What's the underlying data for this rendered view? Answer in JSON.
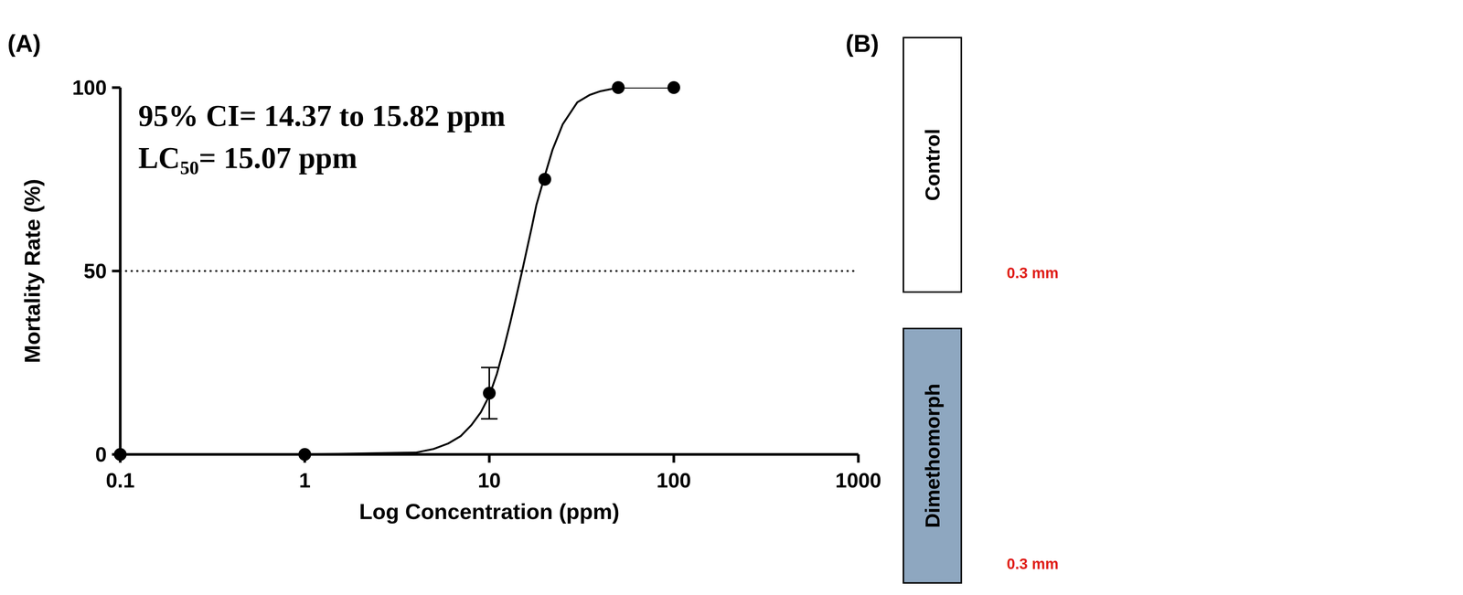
{
  "chart_data": {
    "type": "scatter",
    "label": "(A)",
    "x_label": "Log Concentration (ppm)",
    "y_label": "Mortality Rate (%)",
    "annotations": [
      "95% CI= 14.37 to 15.82 ppm",
      "LC50= 15.07 ppm"
    ],
    "log": "x",
    "xlim": [
      0.1,
      1000
    ],
    "xticks": [
      0.1,
      1,
      10,
      100,
      1000
    ],
    "ylim": [
      0,
      100
    ],
    "yticks": [
      0,
      50,
      100
    ],
    "reference_y": 50,
    "grid": false,
    "series": [
      {
        "type": "scatter",
        "color": "#000000",
        "marker": "circle",
        "x": [
          0.1,
          1,
          10,
          20,
          50,
          100
        ],
        "values": [
          0,
          0,
          16.7,
          75,
          100,
          100
        ],
        "errors": [
          0,
          0,
          7,
          0,
          0,
          0
        ]
      },
      {
        "type": "line",
        "color": "#000000",
        "line_style": "solid",
        "x": [
          0.1,
          1,
          4,
          5,
          6,
          7,
          8,
          9,
          10,
          11,
          12,
          13,
          14,
          15.07,
          16,
          17,
          18,
          20,
          22,
          25,
          30,
          35,
          40,
          50,
          100
        ],
        "values": [
          0,
          0,
          0.5,
          1.5,
          3,
          5,
          8,
          11.5,
          16,
          22,
          29,
          36,
          43,
          50,
          56,
          62,
          68,
          76,
          83,
          90,
          96,
          98,
          99,
          100,
          100
        ]
      }
    ]
  },
  "panel_b": {
    "label": "(B)",
    "panels": [
      {
        "label": "Control",
        "scale_bar": "0.3 mm",
        "arrow": false
      },
      {
        "label": "Dimethomorph",
        "scale_bar": "0.3 mm",
        "arrow": true
      }
    ]
  }
}
